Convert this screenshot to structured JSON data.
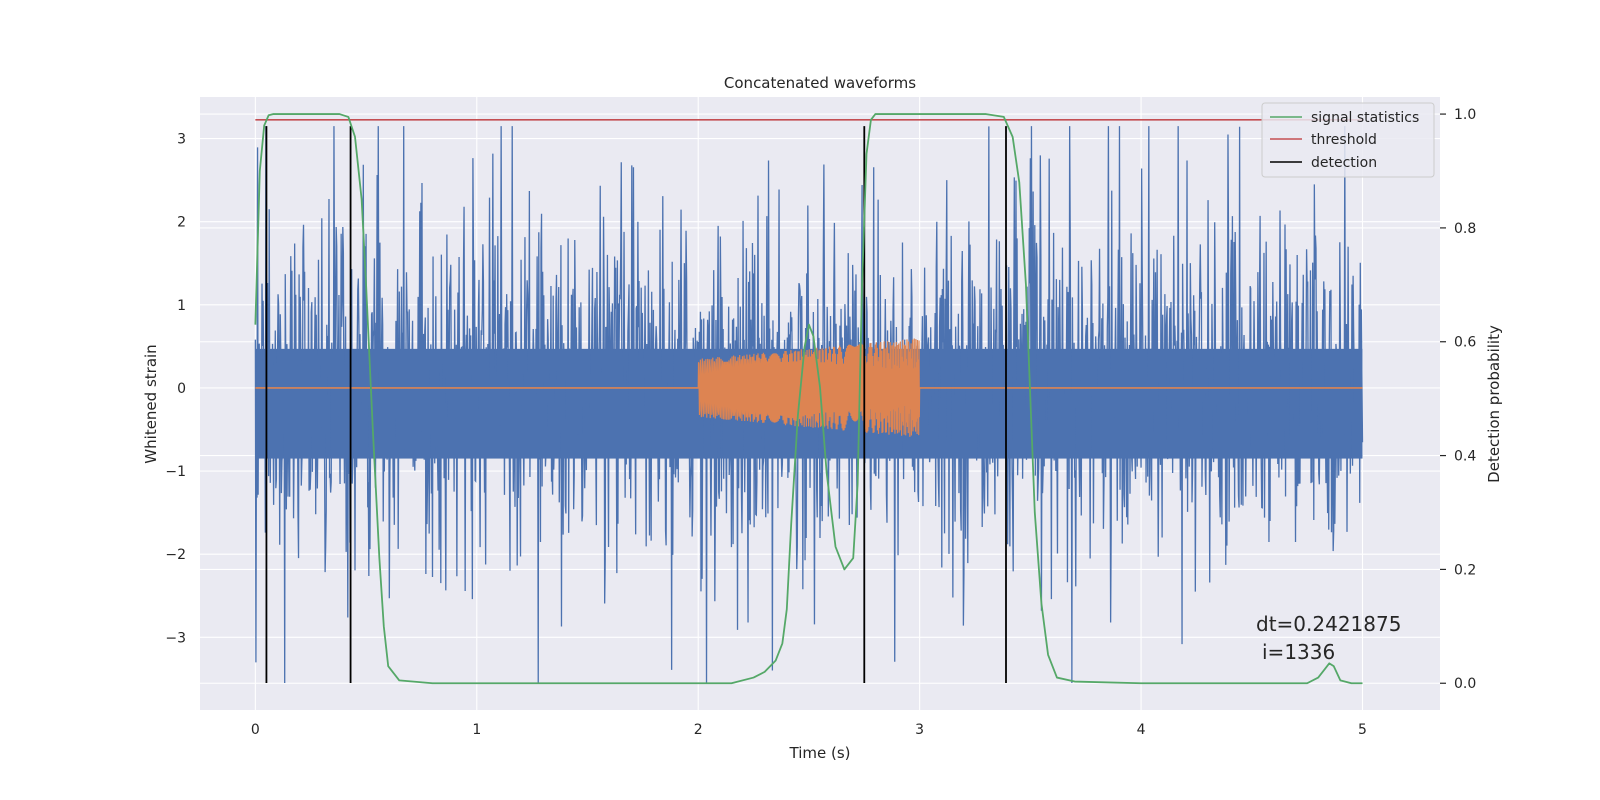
{
  "chart_data": {
    "type": "line",
    "title": "Concatenated waveforms",
    "xlabel": "Time (s)",
    "ylabel": "Whitened strain",
    "ylabel_right": "Detection probability",
    "xlim": [
      -0.25,
      5.35
    ],
    "ylim": [
      -3.875,
      3.5
    ],
    "ylim_right": [
      -0.047,
      1.03
    ],
    "x_ticks": [
      0,
      1,
      2,
      3,
      4,
      5
    ],
    "y_ticks": [
      -3,
      -2,
      -1,
      0,
      1,
      2,
      3
    ],
    "y_ticks_right": [
      0.0,
      0.2,
      0.4,
      0.6,
      0.8,
      1.0
    ],
    "grid": true,
    "legend_position": "top-right",
    "colors": {
      "noise": "#4c72b0",
      "injection": "#dd8452",
      "statistics": "#55a868",
      "threshold": "#c44e52",
      "detection": "#000000",
      "plot_bg": "#eaeaf2",
      "grid": "#ffffff"
    },
    "noise": {
      "x_range": [
        0,
        5
      ],
      "dense_band": [
        -0.85,
        0.47
      ],
      "max_peak": 3.15,
      "min_peak": -3.55
    },
    "injection": {
      "x_range": [
        2,
        3
      ],
      "amplitude_start": 0.35,
      "amplitude_end": 0.6
    },
    "series": [
      {
        "name": "signal statistics",
        "axis": "right",
        "x": [
          0,
          0.02,
          0.04,
          0.06,
          0.08,
          0.1,
          0.2,
          0.3,
          0.38,
          0.42,
          0.45,
          0.48,
          0.5,
          0.53,
          0.56,
          0.58,
          0.6,
          0.65,
          0.8,
          1.5,
          2.0,
          2.15,
          2.25,
          2.3,
          2.35,
          2.38,
          2.4,
          2.42,
          2.45,
          2.48,
          2.5,
          2.52,
          2.55,
          2.58,
          2.62,
          2.66,
          2.7,
          2.72,
          2.74,
          2.76,
          2.78,
          2.8,
          2.85,
          2.9,
          3.0,
          3.1,
          3.3,
          3.38,
          3.42,
          3.45,
          3.48,
          3.5,
          3.52,
          3.55,
          3.58,
          3.62,
          3.7,
          4.0,
          4.5,
          4.75,
          4.8,
          4.83,
          4.85,
          4.87,
          4.9,
          4.95,
          5.0
        ],
        "values": [
          0.63,
          0.9,
          0.98,
          0.998,
          1.0,
          1.0,
          1.0,
          1.0,
          1.0,
          0.995,
          0.96,
          0.85,
          0.7,
          0.45,
          0.22,
          0.1,
          0.03,
          0.005,
          0.0,
          0.0,
          0.0,
          0.0,
          0.01,
          0.02,
          0.04,
          0.07,
          0.13,
          0.28,
          0.47,
          0.59,
          0.63,
          0.61,
          0.52,
          0.37,
          0.24,
          0.2,
          0.22,
          0.35,
          0.7,
          0.93,
          0.99,
          1.0,
          1.0,
          1.0,
          1.0,
          1.0,
          1.0,
          0.995,
          0.96,
          0.88,
          0.7,
          0.5,
          0.3,
          0.14,
          0.05,
          0.01,
          0.003,
          0.0,
          0.0,
          0.0,
          0.01,
          0.025,
          0.035,
          0.03,
          0.005,
          0.0,
          0.0
        ]
      },
      {
        "name": "threshold",
        "axis": "right",
        "x": [
          0,
          5
        ],
        "values": [
          0.99,
          0.99
        ]
      },
      {
        "name": "detection",
        "axis": "left",
        "x": [
          0.05,
          0.43,
          2.75,
          3.39
        ],
        "y_range": [
          -3.55,
          3.15
        ]
      }
    ],
    "annotations": [
      "dt=0.2421875",
      "i=1336"
    ]
  }
}
